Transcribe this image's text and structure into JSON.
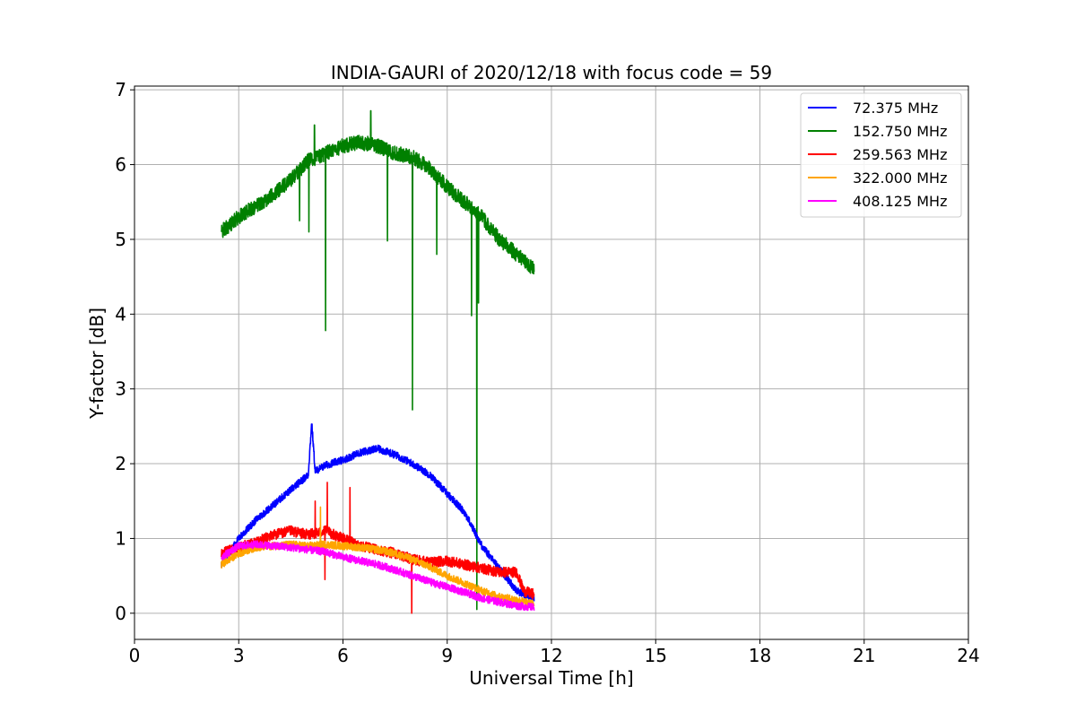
{
  "chart_data": {
    "type": "line",
    "title": "INDIA-GAURI of 2020/12/18 with focus code = 59",
    "xlabel": "Universal Time [h]",
    "ylabel": "Y-factor [dB]",
    "xlim": [
      0,
      24
    ],
    "ylim": [
      -0.35,
      7.05
    ],
    "xticks": [
      0,
      3,
      6,
      9,
      12,
      15,
      18,
      21,
      24
    ],
    "yticks": [
      0,
      1,
      2,
      3,
      4,
      5,
      6,
      7
    ],
    "grid": true,
    "legend_position": "top-right",
    "series": [
      {
        "name": " 72.375 MHz",
        "color": "#0000ff",
        "x": [
          2.5,
          3.0,
          3.5,
          4.0,
          4.5,
          5.0,
          5.1,
          5.2,
          5.5,
          6.0,
          6.5,
          7.0,
          7.5,
          8.0,
          8.5,
          9.0,
          9.5,
          10.0,
          10.5,
          11.0,
          11.5
        ],
        "y": [
          0.65,
          1.0,
          1.25,
          1.45,
          1.65,
          1.85,
          2.55,
          1.9,
          1.98,
          2.05,
          2.15,
          2.2,
          2.12,
          2.0,
          1.85,
          1.6,
          1.35,
          0.9,
          0.6,
          0.3,
          0.2
        ],
        "noise": 0.05
      },
      {
        "name": "152.750 MHz",
        "color": "#008000",
        "x": [
          2.5,
          3.0,
          3.5,
          4.0,
          4.5,
          5.0,
          5.5,
          6.0,
          6.5,
          7.0,
          7.5,
          8.0,
          8.5,
          9.0,
          9.5,
          10.0,
          10.5,
          11.0,
          11.5
        ],
        "y": [
          5.1,
          5.3,
          5.45,
          5.6,
          5.8,
          6.05,
          6.15,
          6.25,
          6.3,
          6.25,
          6.15,
          6.1,
          5.95,
          5.7,
          5.5,
          5.3,
          5.0,
          4.8,
          4.6
        ],
        "noise": 0.1,
        "dips": [
          [
            5.5,
            3.78
          ],
          [
            8.0,
            2.72
          ],
          [
            9.85,
            0.05
          ],
          [
            5.02,
            5.1
          ],
          [
            7.28,
            4.98
          ],
          [
            9.7,
            3.98
          ],
          [
            9.9,
            4.15
          ],
          [
            4.75,
            5.25
          ],
          [
            8.7,
            4.8
          ]
        ],
        "spikes": [
          [
            5.18,
            6.53
          ],
          [
            6.8,
            6.72
          ]
        ]
      },
      {
        "name": "259.563 MHz",
        "color": "#ff0000",
        "x": [
          2.5,
          3.0,
          3.5,
          4.0,
          4.5,
          5.0,
          5.5,
          6.0,
          6.5,
          7.0,
          7.5,
          8.0,
          8.5,
          9.0,
          9.5,
          10.0,
          10.5,
          11.0,
          11.2,
          11.5
        ],
        "y": [
          0.8,
          0.88,
          0.95,
          1.05,
          1.1,
          1.05,
          1.1,
          1.0,
          0.9,
          0.85,
          0.8,
          0.72,
          0.68,
          0.7,
          0.65,
          0.6,
          0.55,
          0.55,
          0.3,
          0.25
        ],
        "noise": 0.07,
        "dips": [
          [
            7.98,
            0.0
          ],
          [
            5.48,
            0.45
          ]
        ],
        "spikes": [
          [
            5.55,
            1.75
          ],
          [
            6.2,
            1.68
          ],
          [
            5.2,
            1.5
          ]
        ]
      },
      {
        "name": "322.000 MHz",
        "color": "#ffa500",
        "x": [
          2.5,
          3.0,
          3.5,
          4.0,
          4.5,
          5.0,
          5.5,
          6.0,
          6.5,
          7.0,
          7.5,
          8.0,
          8.5,
          9.0,
          9.5,
          10.0,
          10.5,
          11.0,
          11.5
        ],
        "y": [
          0.65,
          0.8,
          0.88,
          0.9,
          0.92,
          0.9,
          0.92,
          0.9,
          0.88,
          0.85,
          0.8,
          0.72,
          0.62,
          0.5,
          0.4,
          0.3,
          0.22,
          0.18,
          0.12
        ],
        "noise": 0.05,
        "spikes": [
          [
            5.35,
            1.42
          ]
        ]
      },
      {
        "name": "408.125 MHz",
        "color": "#ff00ff",
        "x": [
          2.5,
          3.0,
          3.5,
          4.0,
          4.5,
          5.0,
          5.5,
          6.0,
          6.5,
          7.0,
          7.5,
          8.0,
          8.5,
          9.0,
          9.5,
          10.0,
          10.5,
          11.0,
          11.5
        ],
        "y": [
          0.75,
          0.9,
          0.92,
          0.9,
          0.88,
          0.85,
          0.82,
          0.75,
          0.7,
          0.65,
          0.58,
          0.5,
          0.42,
          0.35,
          0.28,
          0.2,
          0.15,
          0.1,
          0.08
        ],
        "noise": 0.05
      }
    ]
  }
}
